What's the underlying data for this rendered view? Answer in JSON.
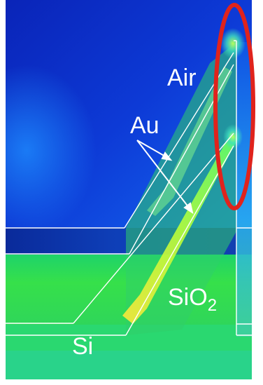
{
  "labels": {
    "air": "Air",
    "au": "Au",
    "sio2_main": "SiO",
    "sio2_sub": "2",
    "si": "Si"
  },
  "colors": {
    "highlight_oval": "#e0231c",
    "structure_lines": "#ffffff",
    "field_low": "#0a2fd0",
    "field_mid": "#1fdc3a",
    "field_high": "#ffe63a"
  }
}
